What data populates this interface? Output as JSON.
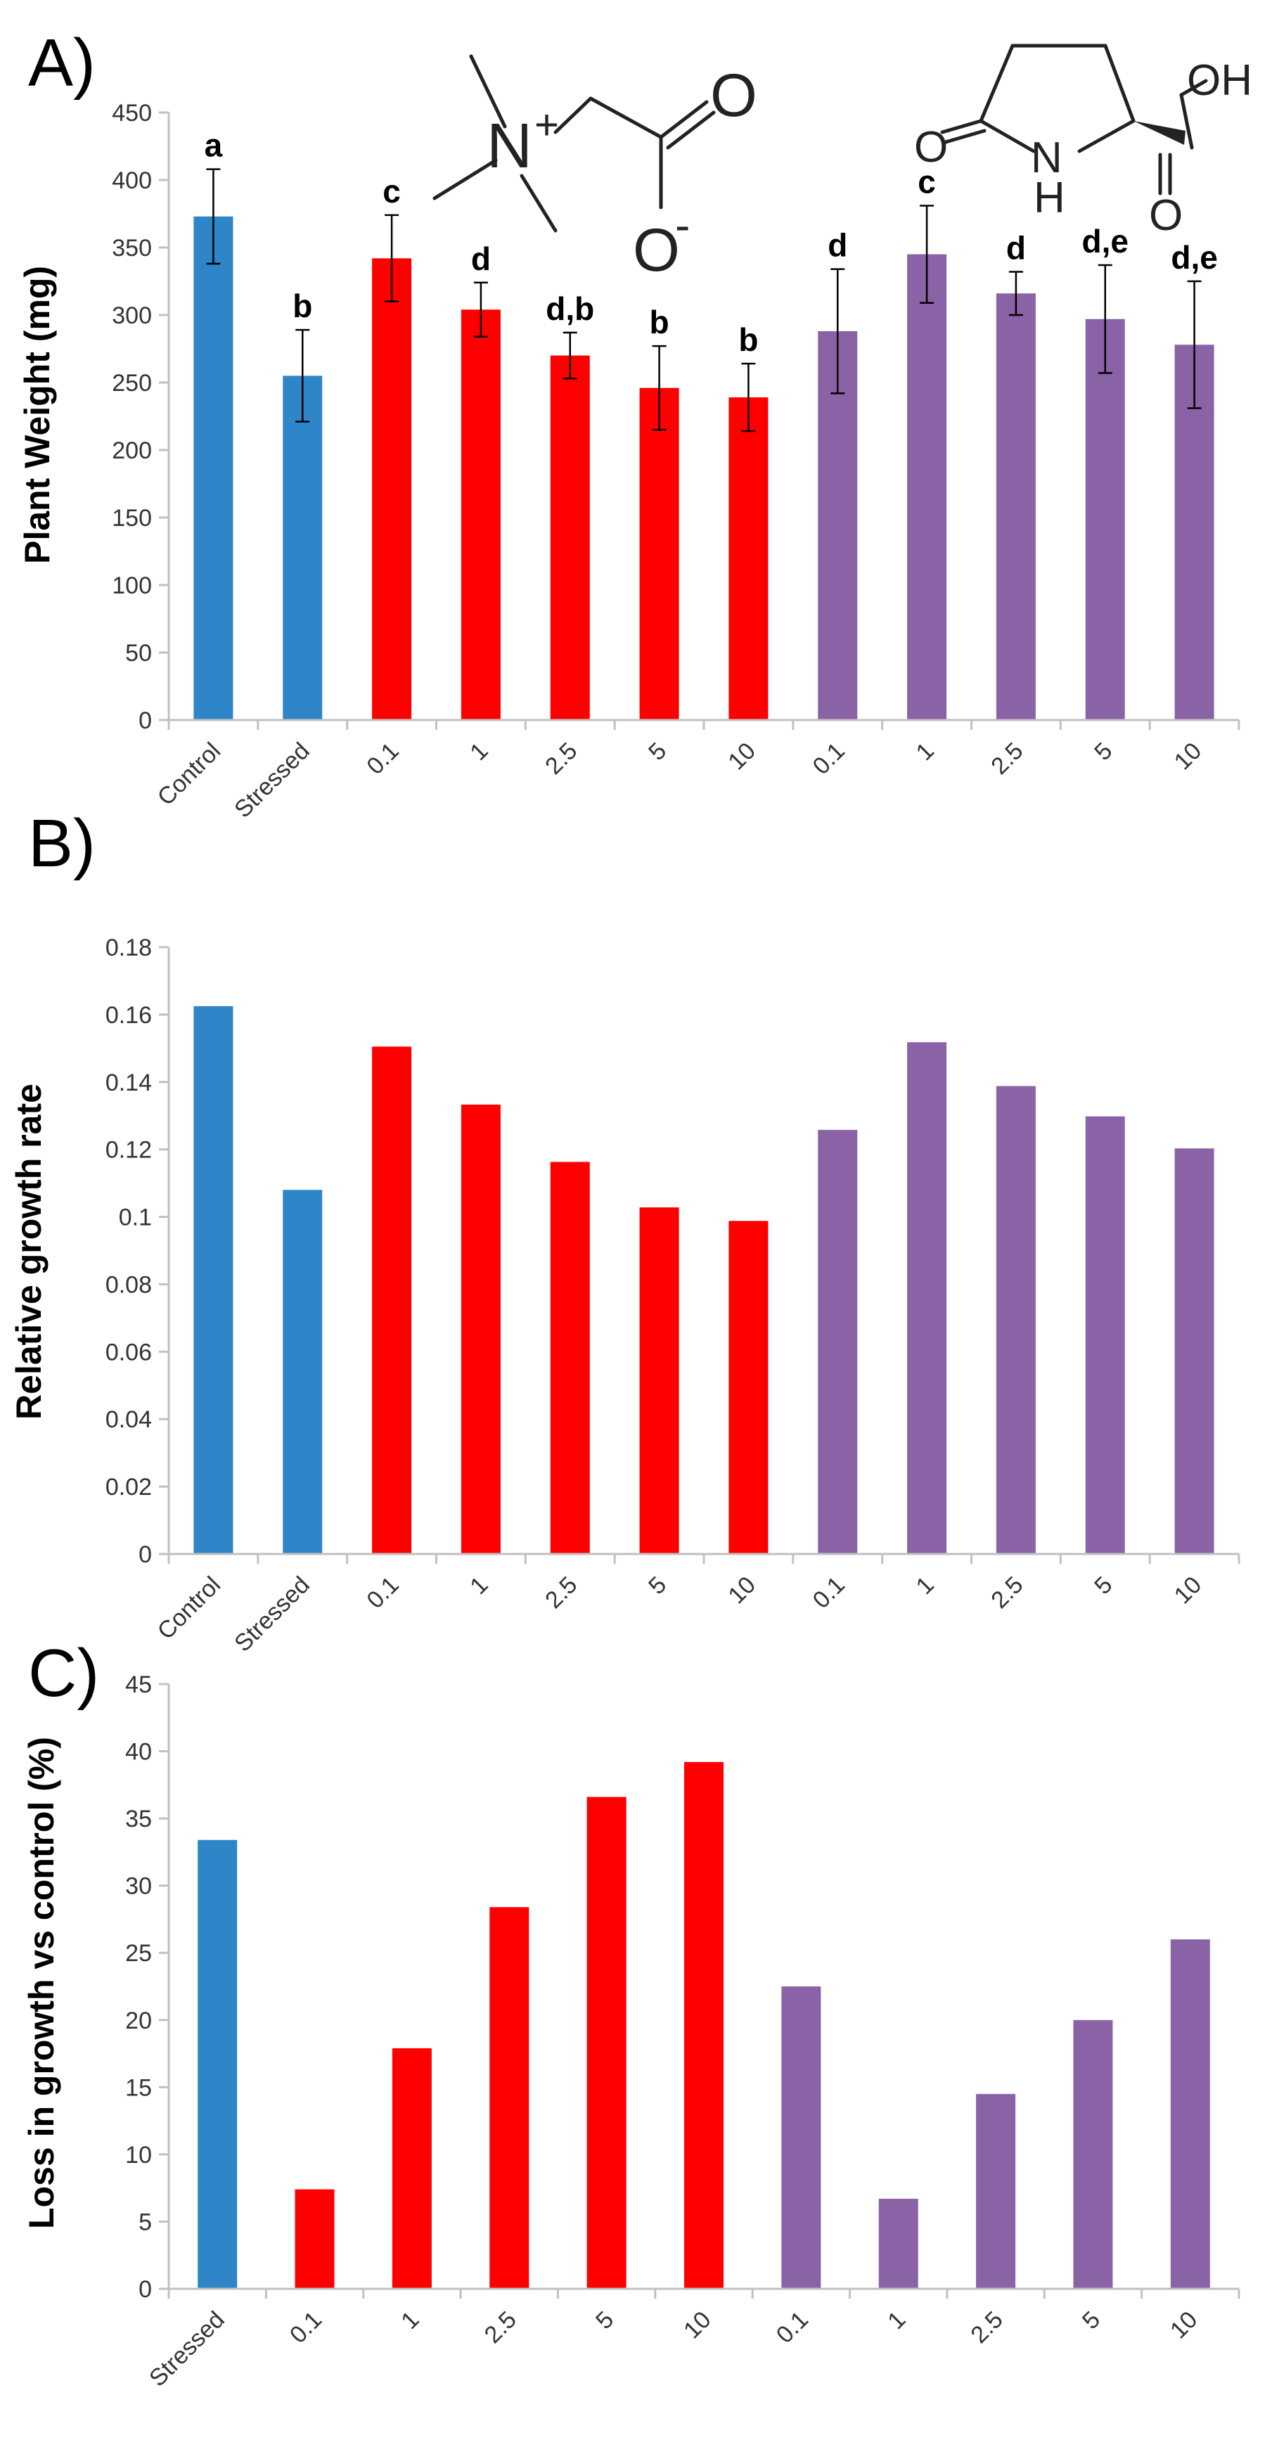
{
  "colors": {
    "control": "#2e86c8",
    "betaine": "#ff0000",
    "pyroglutamate": "#8a63a6",
    "axis": "#c0c0c0",
    "errorbar": "#000000"
  },
  "chart_data": [
    {
      "panel_label": "A)",
      "type": "bar",
      "ylabel": "Plant Weight (mg)",
      "ylim": [
        0,
        450
      ],
      "yticks": [
        "0",
        "50",
        "100",
        "150",
        "200",
        "250",
        "300",
        "350",
        "400",
        "450"
      ],
      "categories": [
        "Control",
        "Stressed",
        "0.1",
        "1",
        "2.5",
        "5",
        "10",
        "0.1",
        "1",
        "2.5",
        "5",
        "10"
      ],
      "groups": [
        "control",
        "control",
        "betaine",
        "betaine",
        "betaine",
        "betaine",
        "betaine",
        "pyroglutamate",
        "pyroglutamate",
        "pyroglutamate",
        "pyroglutamate",
        "pyroglutamate"
      ],
      "values": [
        373,
        255,
        342,
        304,
        270,
        246,
        239,
        288,
        345,
        316,
        297,
        278
      ],
      "errors": [
        35,
        34,
        32,
        20,
        17,
        31,
        25,
        46,
        36,
        16,
        40,
        47
      ],
      "significance": [
        "a",
        "b",
        "c",
        "d",
        "d,b",
        "b",
        "b",
        "d",
        "c",
        "d",
        "d,e",
        "d,e"
      ]
    },
    {
      "panel_label": "B)",
      "type": "bar",
      "ylabel": "Relative growth rate",
      "ylim": [
        0,
        0.18
      ],
      "yticks": [
        "0",
        "0.02",
        "0.04",
        "0.06",
        "0.08",
        "0.1",
        "0.12",
        "0.14",
        "0.16",
        "0.18"
      ],
      "categories": [
        "Control",
        "Stressed",
        "0.1",
        "1",
        "2.5",
        "5",
        "10",
        "0.1",
        "1",
        "2.5",
        "5",
        "10"
      ],
      "groups": [
        "control",
        "control",
        "betaine",
        "betaine",
        "betaine",
        "betaine",
        "betaine",
        "pyroglutamate",
        "pyroglutamate",
        "pyroglutamate",
        "pyroglutamate",
        "pyroglutamate"
      ],
      "values": [
        0.1625,
        0.108,
        0.1505,
        0.1333,
        0.1163,
        0.1028,
        0.0988,
        0.1258,
        0.1518,
        0.1388,
        0.1298,
        0.1203
      ]
    },
    {
      "panel_label": "C)",
      "type": "bar",
      "ylabel": "Loss in growth vs control (%)",
      "ylim": [
        0,
        45
      ],
      "yticks": [
        "0",
        "5",
        "10",
        "15",
        "20",
        "25",
        "30",
        "35",
        "40",
        "45"
      ],
      "categories": [
        "Stressed",
        "0.1",
        "1",
        "2.5",
        "5",
        "10",
        "0.1",
        "1",
        "2.5",
        "5",
        "10"
      ],
      "groups": [
        "control",
        "betaine",
        "betaine",
        "betaine",
        "betaine",
        "betaine",
        "pyroglutamate",
        "pyroglutamate",
        "pyroglutamate",
        "pyroglutamate",
        "pyroglutamate"
      ],
      "values": [
        33.4,
        7.4,
        17.9,
        28.4,
        36.6,
        39.2,
        22.5,
        6.7,
        14.5,
        20.0,
        26.0
      ]
    }
  ],
  "structures": {
    "betaine": {
      "n_label": "N",
      "n_charge": "+",
      "o_label": "O",
      "o_minus_label": "O",
      "o_minus_charge": "-"
    },
    "pyroglutamate": {
      "o_left": "O",
      "nh_n": "N",
      "nh_h": "H",
      "oh_label": "OH",
      "o_bottom": "O"
    }
  }
}
